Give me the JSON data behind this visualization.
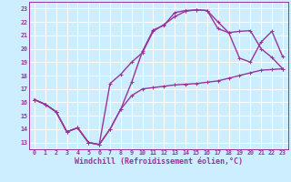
{
  "background_color": "#cceeff",
  "grid_color": "#ffffff",
  "line_color": "#993399",
  "xlabel": "Windchill (Refroidissement éolien,°C)",
  "xlim": [
    -0.5,
    23.5
  ],
  "ylim": [
    12.5,
    23.5
  ],
  "line1_x": [
    0,
    1,
    2,
    3,
    4,
    5,
    6,
    7,
    8,
    9,
    10,
    11,
    12,
    13,
    14,
    15,
    16,
    17,
    18,
    19,
    20,
    21,
    22,
    23
  ],
  "line1_y": [
    16.2,
    15.85,
    15.3,
    13.8,
    14.1,
    13.0,
    12.85,
    14.0,
    15.5,
    16.5,
    17.0,
    17.1,
    17.2,
    17.3,
    17.35,
    17.4,
    17.5,
    17.6,
    17.8,
    18.0,
    18.2,
    18.4,
    18.45,
    18.5
  ],
  "line2_x": [
    0,
    1,
    2,
    3,
    4,
    5,
    6,
    7,
    8,
    9,
    10,
    11,
    12,
    13,
    14,
    15,
    16,
    17,
    18,
    19,
    20,
    21,
    22,
    23
  ],
  "line2_y": [
    16.2,
    15.85,
    15.3,
    13.8,
    14.1,
    13.0,
    12.85,
    17.4,
    18.1,
    19.0,
    19.7,
    21.3,
    21.8,
    22.4,
    22.8,
    22.9,
    22.85,
    22.0,
    21.2,
    19.3,
    19.0,
    20.5,
    21.3,
    19.4
  ],
  "line3_x": [
    0,
    1,
    2,
    3,
    4,
    5,
    6,
    7,
    8,
    9,
    10,
    11,
    12,
    13,
    14,
    15,
    16,
    17,
    18,
    19,
    20,
    21,
    22,
    23
  ],
  "line3_y": [
    16.2,
    15.85,
    15.3,
    13.8,
    14.1,
    13.0,
    12.85,
    14.0,
    15.5,
    17.5,
    19.8,
    21.4,
    21.75,
    22.7,
    22.85,
    22.9,
    22.85,
    21.5,
    21.2,
    21.3,
    21.35,
    20.0,
    19.35,
    18.5
  ]
}
